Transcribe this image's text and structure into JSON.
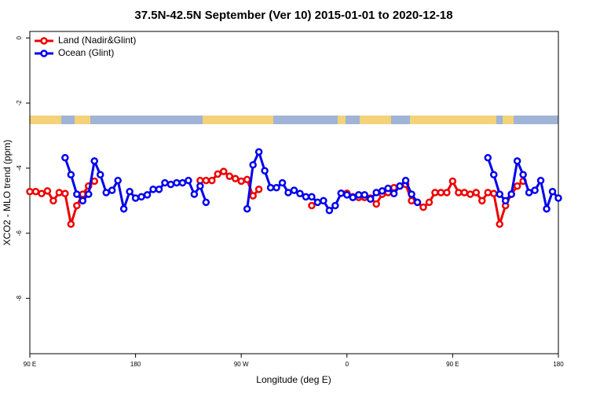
{
  "chart_data": {
    "type": "line",
    "title": "37.5N-42.5N September (Ver 10)   2015-01-01 to 2020-12-18",
    "xlabel": "Longitude (deg E)",
    "ylabel": "XCO2 - MLO trend (ppm)",
    "xlim": [
      90,
      540
    ],
    "ylim": [
      -9.7,
      0.2
    ],
    "xticks": [
      {
        "value": 90,
        "label": "90 E"
      },
      {
        "value": 180,
        "label": "180"
      },
      {
        "value": 270,
        "label": "90 W"
      },
      {
        "value": 360,
        "label": "0"
      },
      {
        "value": 450,
        "label": "90 E"
      },
      {
        "value": 540,
        "label": "180"
      }
    ],
    "yticks": [
      0,
      -2,
      -4,
      -6,
      -8
    ],
    "legend": "top-left",
    "series": [
      {
        "name": "Land (Nadir&Glint)",
        "color": "#ee0000",
        "x": [
          90,
          95,
          100,
          105,
          110,
          115,
          120,
          125,
          130,
          135,
          140,
          145,
          150,
          235,
          240,
          245,
          250,
          255,
          260,
          265,
          270,
          275,
          280,
          285,
          290,
          330,
          335,
          355,
          360,
          365,
          370,
          375,
          380,
          385,
          390,
          395,
          400,
          405,
          410,
          415,
          420,
          425,
          430,
          435,
          440,
          445,
          450,
          455,
          460,
          465,
          470,
          475,
          480,
          485,
          490,
          495,
          500,
          505,
          510
        ],
        "values": [
          -4.72,
          -4.72,
          -4.78,
          -4.7,
          -5.0,
          -4.75,
          -4.78,
          -5.72,
          -5.15,
          -4.8,
          -4.55,
          -4.4,
          null,
          -4.38,
          -4.38,
          -4.38,
          -4.18,
          -4.1,
          -4.25,
          -4.32,
          -4.4,
          -4.35,
          -4.85,
          -4.65,
          null,
          -5.15,
          null,
          -4.77,
          -4.77,
          -4.88,
          -4.9,
          -4.9,
          -4.92,
          -5.1,
          -4.8,
          -4.75,
          -4.6,
          -4.55,
          -4.5,
          -5.0,
          -5.05,
          -5.2,
          -5.05,
          -4.75,
          -4.75,
          -4.75,
          -4.4,
          -4.75,
          -4.75,
          -4.8,
          -4.75,
          -5.0,
          -4.75,
          -4.78,
          -5.72,
          -5.15,
          -4.8,
          -4.55,
          -4.4
        ]
      },
      {
        "name": "Ocean (Glint)",
        "color": "#0000ee",
        "x": [
          120,
          125,
          130,
          135,
          140,
          145,
          150,
          155,
          160,
          165,
          170,
          175,
          180,
          185,
          190,
          195,
          200,
          205,
          210,
          215,
          220,
          225,
          230,
          235,
          240,
          245,
          275,
          280,
          285,
          290,
          295,
          300,
          305,
          310,
          315,
          320,
          325,
          330,
          335,
          340,
          345,
          350,
          355,
          360,
          365,
          370,
          375,
          380,
          385,
          390,
          395,
          400,
          405,
          410,
          415,
          420,
          425,
          480,
          485,
          490,
          495,
          500,
          505,
          510,
          515,
          520,
          525,
          530,
          535,
          540
        ],
        "values": [
          -3.68,
          -4.2,
          -4.8,
          -5.0,
          -4.8,
          -3.78,
          -4.2,
          -4.75,
          -4.68,
          -4.38,
          -5.25,
          -4.72,
          -4.92,
          -4.88,
          -4.82,
          -4.65,
          -4.65,
          -4.45,
          -4.5,
          -4.45,
          -4.45,
          -4.38,
          -4.8,
          -4.55,
          -5.05,
          null,
          -5.25,
          -3.9,
          -3.5,
          -4.08,
          -4.6,
          -4.6,
          -4.45,
          -4.75,
          -4.68,
          -4.78,
          -4.88,
          -4.88,
          -5.05,
          -5.0,
          -5.3,
          -5.15,
          -4.77,
          -4.82,
          -4.9,
          -4.82,
          -4.82,
          -4.95,
          -4.75,
          -4.7,
          -4.62,
          -4.78,
          -4.55,
          -4.38,
          -4.8,
          -5.05,
          null,
          -3.68,
          -4.2,
          -4.8,
          -5.0,
          -4.8,
          -3.78,
          -4.2,
          -4.75,
          -4.68,
          -4.38,
          -5.25,
          -4.72,
          -4.92
        ]
      }
    ]
  }
}
